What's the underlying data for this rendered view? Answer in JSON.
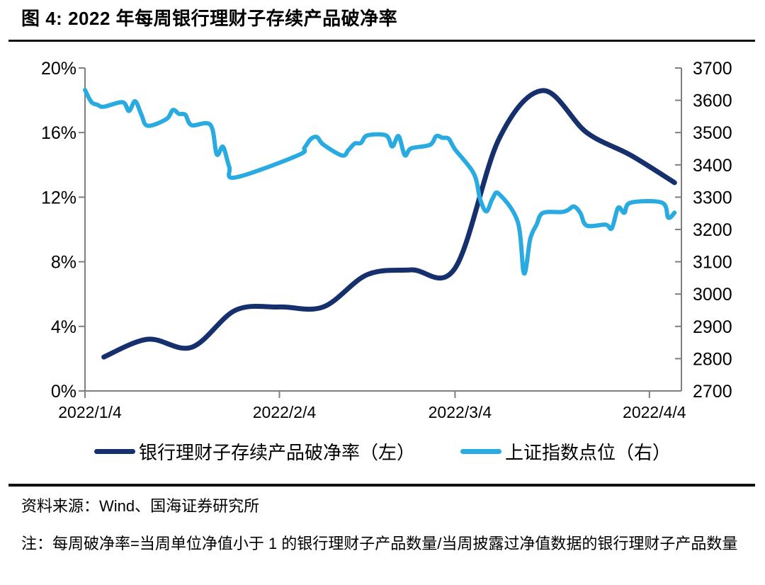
{
  "page": {
    "title": "图 4: 2022 年每周银行理财子存续产品破净率",
    "source": "资料来源：Wind、国海证券研究所",
    "note": "注：每周破净率=当周单位净值小于 1 的银行理财子产品数量/当周披露过净值数据的银行理财子产品数量"
  },
  "colors": {
    "rate_line": "#16306e",
    "index_line": "#29abe2",
    "axis": "#7f7f7f",
    "text": "#000000"
  },
  "chart_data": {
    "type": "line",
    "title": "2022 年每周银行理财子存续产品破净率",
    "legend_position": "bottom",
    "grid": false,
    "x_domain": {
      "start": "2022/01/04",
      "end": "2022/04/09"
    },
    "x_ticks": [
      {
        "d": "2022/01/04",
        "label": "2022/1/4"
      },
      {
        "d": "2022/02/04",
        "label": "2022/2/4"
      },
      {
        "d": "2022/03/04",
        "label": "2022/3/4"
      },
      {
        "d": "2022/04/04",
        "label": "2022/4/4"
      }
    ],
    "y_left": {
      "min": 0,
      "max": 20,
      "unit": "%",
      "ticks": [
        {
          "v": 0,
          "label": "0%"
        },
        {
          "v": 4,
          "label": "4%"
        },
        {
          "v": 8,
          "label": "8%"
        },
        {
          "v": 12,
          "label": "12%"
        },
        {
          "v": 16,
          "label": "16%"
        },
        {
          "v": 20,
          "label": "20%"
        }
      ]
    },
    "y_right": {
      "min": 2700,
      "max": 3700,
      "unit": "点",
      "ticks": [
        {
          "v": 2700,
          "label": "2700"
        },
        {
          "v": 2800,
          "label": "2800"
        },
        {
          "v": 2900,
          "label": "2900"
        },
        {
          "v": 3000,
          "label": "3000"
        },
        {
          "v": 3100,
          "label": "3100"
        },
        {
          "v": 3200,
          "label": "3200"
        },
        {
          "v": 3300,
          "label": "3300"
        },
        {
          "v": 3400,
          "label": "3400"
        },
        {
          "v": 3500,
          "label": "3500"
        },
        {
          "v": 3600,
          "label": "3600"
        },
        {
          "v": 3700,
          "label": "3700"
        }
      ]
    },
    "series": [
      {
        "name": "银行理财子存续产品破净率（左）",
        "axis": "left",
        "color": "#16306e",
        "width": 7,
        "smooth": true,
        "points": [
          [
            "2022/01/07",
            2.1
          ],
          [
            "2022/01/14",
            3.2
          ],
          [
            "2022/01/21",
            2.7
          ],
          [
            "2022/01/28",
            5.0
          ],
          [
            "2022/02/04",
            5.2
          ],
          [
            "2022/02/11",
            5.2
          ],
          [
            "2022/02/18",
            7.2
          ],
          [
            "2022/02/25",
            7.5
          ],
          [
            "2022/03/04",
            7.6
          ],
          [
            "2022/03/11",
            15.6
          ],
          [
            "2022/03/18",
            18.6
          ],
          [
            "2022/03/25",
            16.0
          ],
          [
            "2022/04/01",
            14.6
          ],
          [
            "2022/04/08",
            12.9
          ]
        ]
      },
      {
        "name": "上证指数点位（右）",
        "axis": "right",
        "color": "#29abe2",
        "width": 6,
        "smooth": true,
        "points": [
          [
            "2022/01/04",
            3632
          ],
          [
            "2022/01/05",
            3595
          ],
          [
            "2022/01/06",
            3586
          ],
          [
            "2022/01/07",
            3580
          ],
          [
            "2022/01/10",
            3594
          ],
          [
            "2022/01/11",
            3567
          ],
          [
            "2022/01/12",
            3597
          ],
          [
            "2022/01/13",
            3555
          ],
          [
            "2022/01/14",
            3521
          ],
          [
            "2022/01/17",
            3542
          ],
          [
            "2022/01/18",
            3570
          ],
          [
            "2022/01/19",
            3558
          ],
          [
            "2022/01/20",
            3555
          ],
          [
            "2022/01/21",
            3523
          ],
          [
            "2022/01/24",
            3524
          ],
          [
            "2022/01/25",
            3433
          ],
          [
            "2022/01/26",
            3456
          ],
          [
            "2022/01/27",
            3394
          ],
          [
            "2022/01/28",
            3361
          ],
          [
            "2022/02/07",
            3430
          ],
          [
            "2022/02/08",
            3453
          ],
          [
            "2022/02/09",
            3480
          ],
          [
            "2022/02/10",
            3486
          ],
          [
            "2022/02/11",
            3463
          ],
          [
            "2022/02/14",
            3429
          ],
          [
            "2022/02/15",
            3446
          ],
          [
            "2022/02/16",
            3466
          ],
          [
            "2022/02/17",
            3468
          ],
          [
            "2022/02/18",
            3491
          ],
          [
            "2022/02/21",
            3491
          ],
          [
            "2022/02/22",
            3457
          ],
          [
            "2022/02/23",
            3489
          ],
          [
            "2022/02/24",
            3430
          ],
          [
            "2022/02/25",
            3451
          ],
          [
            "2022/02/28",
            3462
          ],
          [
            "2022/03/01",
            3489
          ],
          [
            "2022/03/02",
            3484
          ],
          [
            "2022/03/03",
            3481
          ],
          [
            "2022/03/04",
            3448
          ],
          [
            "2022/03/07",
            3373
          ],
          [
            "2022/03/08",
            3294
          ],
          [
            "2022/03/09",
            3256
          ],
          [
            "2022/03/10",
            3296
          ],
          [
            "2022/03/11",
            3310
          ],
          [
            "2022/03/14",
            3224
          ],
          [
            "2022/03/15",
            3064
          ],
          [
            "2022/03/16",
            3171
          ],
          [
            "2022/03/17",
            3215
          ],
          [
            "2022/03/18",
            3251
          ],
          [
            "2022/03/21",
            3254
          ],
          [
            "2022/03/22",
            3260
          ],
          [
            "2022/03/23",
            3271
          ],
          [
            "2022/03/24",
            3250
          ],
          [
            "2022/03/25",
            3212
          ],
          [
            "2022/03/28",
            3215
          ],
          [
            "2022/03/29",
            3204
          ],
          [
            "2022/03/30",
            3267
          ],
          [
            "2022/03/31",
            3252
          ],
          [
            "2022/04/01",
            3283
          ],
          [
            "2022/04/06",
            3283
          ],
          [
            "2022/04/07",
            3237
          ],
          [
            "2022/04/08",
            3252
          ]
        ]
      }
    ]
  }
}
